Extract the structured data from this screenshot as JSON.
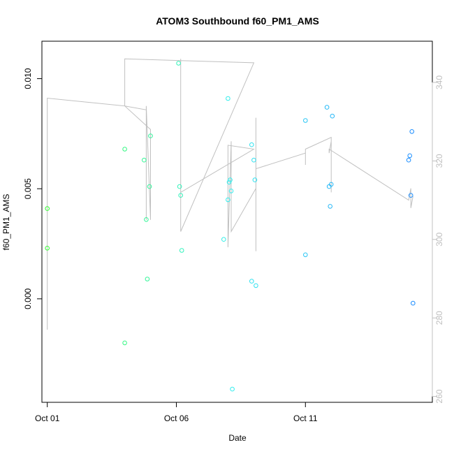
{
  "chart_data": {
    "type": "scatter",
    "title": "ATOM3 Southbound f60_PM1_AMS",
    "xlabel": "Date",
    "ylabel": "f60_PM1_AMS",
    "x_range": [
      "2016-09-30T19:00",
      "2016-10-15T22:00"
    ],
    "ylim": [
      -0.0047,
      0.0117
    ],
    "y2lim": [
      258.5,
      350.5
    ],
    "x_ticks": [
      {
        "x": "2016-10-01T00:00",
        "label": "Oct 01"
      },
      {
        "x": "2016-10-06T00:00",
        "label": "Oct 06"
      },
      {
        "x": "2016-10-11T00:00",
        "label": "Oct 11"
      }
    ],
    "y_ticks": [
      {
        "y": 0.0,
        "label": "0.000"
      },
      {
        "y": 0.005,
        "label": "0.005"
      },
      {
        "y": 0.01,
        "label": "0.010"
      }
    ],
    "y2_ticks": [
      {
        "y": 260,
        "label": "260"
      },
      {
        "y": 280,
        "label": "280"
      },
      {
        "y": 300,
        "label": "300"
      },
      {
        "y": 320,
        "label": "320"
      },
      {
        "y": 340,
        "label": "340"
      }
    ],
    "grid": false,
    "legend": "none",
    "points_color_scale": "green→cyan→blue over time",
    "colors": {
      "early": "#33ff33",
      "late": "#1a8cff",
      "line": "#c0c0c0",
      "y2_axis": "#c0c0c0"
    },
    "points": [
      {
        "x": "2016-10-01T00:00",
        "y": 0.0041
      },
      {
        "x": "2016-10-01T00:00",
        "y": 0.0023
      },
      {
        "x": "2016-10-04T00:00",
        "y": 0.0068
      },
      {
        "x": "2016-10-04T00:00",
        "y": -0.002
      },
      {
        "x": "2016-10-04T18:00",
        "y": 0.0063
      },
      {
        "x": "2016-10-04T20:00",
        "y": 0.0036
      },
      {
        "x": "2016-10-04T21:00",
        "y": 0.0009
      },
      {
        "x": "2016-10-04T23:00",
        "y": 0.0051
      },
      {
        "x": "2016-10-05T00:00",
        "y": 0.0074
      },
      {
        "x": "2016-10-06T02:00",
        "y": 0.0107
      },
      {
        "x": "2016-10-06T03:00",
        "y": 0.0051
      },
      {
        "x": "2016-10-06T04:00",
        "y": 0.0047
      },
      {
        "x": "2016-10-06T05:00",
        "y": 0.0022
      },
      {
        "x": "2016-10-07T20:00",
        "y": 0.0027
      },
      {
        "x": "2016-10-08T00:00",
        "y": 0.0091
      },
      {
        "x": "2016-10-08T00:00",
        "y": 0.0045
      },
      {
        "x": "2016-10-08T01:00",
        "y": 0.0053
      },
      {
        "x": "2016-10-08T02:00",
        "y": 0.0054
      },
      {
        "x": "2016-10-08T03:00",
        "y": 0.0049
      },
      {
        "x": "2016-10-08T04:00",
        "y": -0.0041
      },
      {
        "x": "2016-10-08T22:00",
        "y": 0.007
      },
      {
        "x": "2016-10-08T22:00",
        "y": 0.0008
      },
      {
        "x": "2016-10-09T00:00",
        "y": 0.0063
      },
      {
        "x": "2016-10-09T01:00",
        "y": 0.0054
      },
      {
        "x": "2016-10-09T02:00",
        "y": 0.0006
      },
      {
        "x": "2016-10-11T00:00",
        "y": 0.0081
      },
      {
        "x": "2016-10-11T00:00",
        "y": 0.002
      },
      {
        "x": "2016-10-11T20:00",
        "y": 0.0087
      },
      {
        "x": "2016-10-11T22:00",
        "y": 0.0051
      },
      {
        "x": "2016-10-11T23:00",
        "y": 0.0042
      },
      {
        "x": "2016-10-12T00:00",
        "y": 0.0052
      },
      {
        "x": "2016-10-12T01:00",
        "y": 0.0083
      },
      {
        "x": "2016-10-15T00:00",
        "y": 0.0063
      },
      {
        "x": "2016-10-15T01:00",
        "y": 0.0065
      },
      {
        "x": "2016-10-15T02:00",
        "y": 0.0047
      },
      {
        "x": "2016-10-15T03:00",
        "y": 0.0076
      },
      {
        "x": "2016-10-15T04:00",
        "y": -0.0002
      }
    ],
    "secondary_line": [
      {
        "x": "2016-10-01T00:00",
        "y": 277
      },
      {
        "x": "2016-10-01T00:00",
        "y": 336
      },
      {
        "x": "2016-10-04T00:00",
        "y": 334
      },
      {
        "x": "2016-10-04T00:00",
        "y": 346
      },
      {
        "x": "2016-10-04T00:00",
        "y": 334
      },
      {
        "x": "2016-10-05T00:00",
        "y": 328
      },
      {
        "x": "2016-10-05T00:00",
        "y": 319
      },
      {
        "x": "2016-10-05T00:00",
        "y": 305
      },
      {
        "x": "2016-10-04T20:00",
        "y": 334
      },
      {
        "x": "2016-10-04T20:00",
        "y": 305
      },
      {
        "x": "2016-10-04T20:00",
        "y": 333
      },
      {
        "x": "2016-10-04T00:00",
        "y": 334
      },
      {
        "x": "2016-10-04T00:00",
        "y": 346
      },
      {
        "x": "2016-10-09T00:00",
        "y": 345
      },
      {
        "x": "2016-10-06T04:00",
        "y": 302
      },
      {
        "x": "2016-10-06T04:00",
        "y": 346
      },
      {
        "x": "2016-10-06T04:00",
        "y": 312
      },
      {
        "x": "2016-10-09T00:00",
        "y": 323
      },
      {
        "x": "2016-10-08T00:00",
        "y": 324
      },
      {
        "x": "2016-10-08T00:00",
        "y": 298
      },
      {
        "x": "2016-10-08T03:00",
        "y": 325
      },
      {
        "x": "2016-10-08T03:00",
        "y": 302
      },
      {
        "x": "2016-10-09T02:00",
        "y": 313
      },
      {
        "x": "2016-10-09T02:00",
        "y": 297
      },
      {
        "x": "2016-10-09T02:00",
        "y": 331
      },
      {
        "x": "2016-10-09T02:00",
        "y": 318
      },
      {
        "x": "2016-10-11T00:00",
        "y": 322
      },
      {
        "x": "2016-10-11T00:00",
        "y": 319
      },
      {
        "x": "2016-10-11T00:00",
        "y": 323
      },
      {
        "x": "2016-10-12T00:00",
        "y": 326
      },
      {
        "x": "2016-10-12T00:00",
        "y": 312
      },
      {
        "x": "2016-10-12T00:00",
        "y": 325
      },
      {
        "x": "2016-10-11T22:00",
        "y": 322
      },
      {
        "x": "2016-10-11T22:00",
        "y": 323
      },
      {
        "x": "2016-10-15T00:00",
        "y": 310
      },
      {
        "x": "2016-10-15T02:00",
        "y": 313
      },
      {
        "x": "2016-10-15T02:00",
        "y": 308
      },
      {
        "x": "2016-10-15T04:00",
        "y": 311
      }
    ]
  }
}
